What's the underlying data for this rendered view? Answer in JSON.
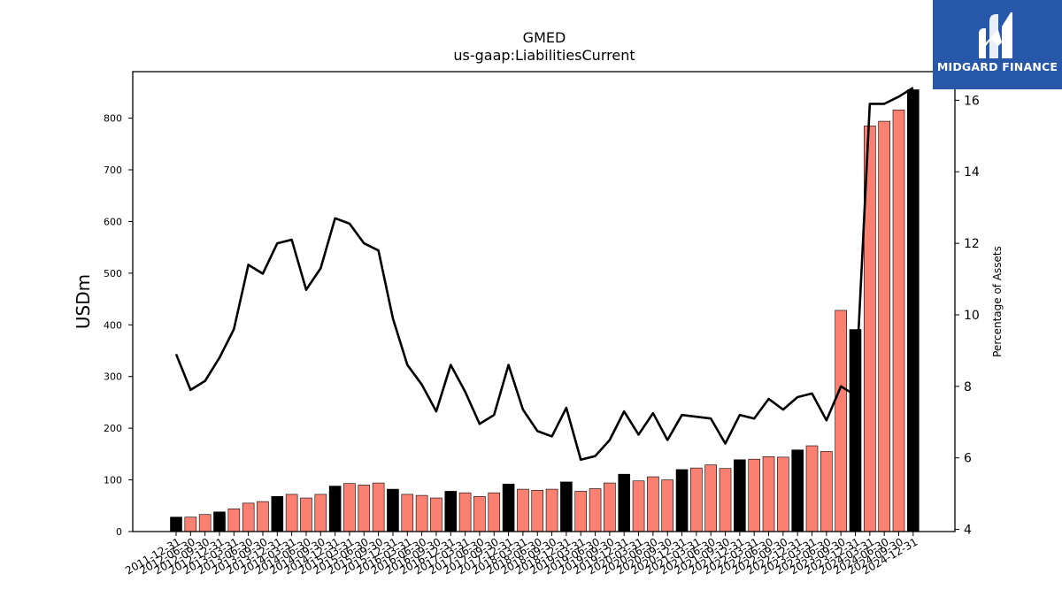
{
  "brand": {
    "name": "MIDGARD FINANCE",
    "color": "#2757a8",
    "icon": "midgard-m-logo"
  },
  "chart_data": {
    "type": "bar",
    "title": "GMED",
    "subtitle": "us-gaap:LiabilitiesCurrent",
    "ylabel": "USDm",
    "y2label": "Percentage of Assets",
    "ylim": [
      0,
      890
    ],
    "y2lim": [
      3.94,
      16.8
    ],
    "yticks": [
      0,
      100,
      200,
      300,
      400,
      500,
      600,
      700,
      800
    ],
    "y2ticks": [
      4,
      6,
      8,
      10,
      12,
      14,
      16
    ],
    "colors": {
      "annual": "#000000",
      "quarter": "#fa8072",
      "line": "#000000"
    },
    "categories": [
      "2011-12-31",
      "2012-06-30",
      "2012-09-30",
      "2012-12-31",
      "2013-03-31",
      "2013-06-30",
      "2013-09-30",
      "2013-12-31",
      "2014-03-31",
      "2014-06-30",
      "2014-09-30",
      "2014-12-31",
      "2015-03-31",
      "2015-06-30",
      "2015-09-30",
      "2015-12-31",
      "2016-03-31",
      "2016-06-30",
      "2016-09-30",
      "2016-12-31",
      "2017-03-31",
      "2017-06-30",
      "2017-09-30",
      "2017-12-31",
      "2018-03-31",
      "2018-06-30",
      "2018-09-30",
      "2018-12-31",
      "2019-03-31",
      "2019-06-30",
      "2019-09-30",
      "2019-12-31",
      "2020-03-31",
      "2020-06-30",
      "2020-09-30",
      "2020-12-31",
      "2021-03-31",
      "2021-06-30",
      "2021-09-30",
      "2021-12-31",
      "2022-03-31",
      "2022-06-30",
      "2022-09-30",
      "2022-12-31",
      "2023-03-31",
      "2023-06-30",
      "2023-09-30",
      "2023-12-31",
      "2024-03-31",
      "2024-06-30",
      "2024-09-30",
      "2024-12-31"
    ],
    "series": [
      {
        "name": "LiabilitiesCurrent",
        "kind": "bar",
        "values": [
          28,
          28,
          33,
          38,
          44,
          55,
          58,
          68,
          72,
          65,
          72,
          88,
          93,
          90,
          94,
          82,
          72,
          70,
          65,
          78,
          75,
          68,
          75,
          92,
          82,
          80,
          82,
          96,
          78,
          83,
          94,
          111,
          98,
          106,
          100,
          120,
          123,
          129,
          122,
          139,
          140,
          145,
          144,
          158,
          166,
          155,
          428,
          391,
          785,
          794,
          816,
          855
        ],
        "is_annual": [
          true,
          false,
          false,
          true,
          false,
          false,
          false,
          true,
          false,
          false,
          false,
          true,
          false,
          false,
          false,
          true,
          false,
          false,
          false,
          true,
          false,
          false,
          false,
          true,
          false,
          false,
          false,
          true,
          false,
          false,
          false,
          true,
          false,
          false,
          false,
          true,
          false,
          false,
          false,
          true,
          false,
          false,
          false,
          true,
          false,
          false,
          false,
          true,
          false,
          false,
          false,
          true
        ]
      },
      {
        "name": "Percentage of Assets",
        "kind": "line",
        "axis": "right",
        "values": [
          8.9,
          7.9,
          8.15,
          8.8,
          9.6,
          11.4,
          11.15,
          12.0,
          12.1,
          10.7,
          11.3,
          12.7,
          12.55,
          12.0,
          11.8,
          9.9,
          8.6,
          8.05,
          7.3,
          8.6,
          7.85,
          6.95,
          7.2,
          8.6,
          7.35,
          6.75,
          6.6,
          7.4,
          5.95,
          6.05,
          6.5,
          7.3,
          6.65,
          7.25,
          6.5,
          7.2,
          7.15,
          7.1,
          6.4,
          7.2,
          7.1,
          7.65,
          7.35,
          7.7,
          7.8,
          7.05,
          8.0,
          7.75,
          15.9,
          15.9,
          16.1,
          16.35
        ]
      }
    ]
  }
}
